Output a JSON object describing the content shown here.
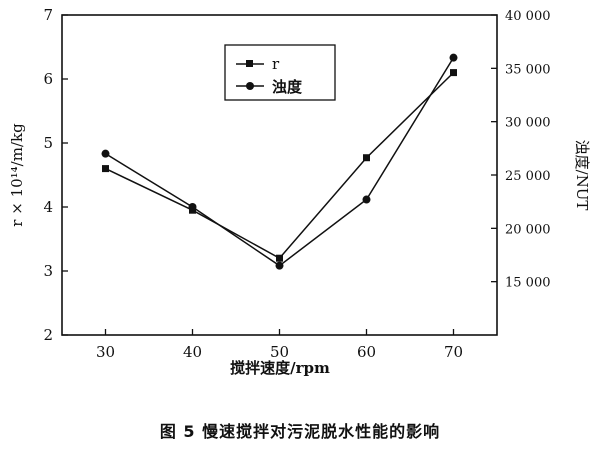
{
  "chart_data": {
    "type": "line",
    "title": "",
    "xlabel": "搅拌速度/rpm",
    "ylabel_left": "r × 10¹⁴/m/kg",
    "ylabel_right": "浊度/NUT",
    "x": [
      30,
      40,
      50,
      60,
      70
    ],
    "xlim": [
      25,
      75
    ],
    "ylim_left": [
      2,
      7
    ],
    "ylim_right": [
      10000,
      40000
    ],
    "x_ticks": [
      "30",
      "40",
      "50",
      "60",
      "70"
    ],
    "y_ticks_left": [
      "2",
      "3",
      "4",
      "5",
      "6",
      "7"
    ],
    "y_ticks_right": [
      "15 000",
      "20 000",
      "25 000",
      "30 000",
      "35 000",
      "40 000"
    ],
    "grid": false,
    "legend_position": "upper-middle",
    "series": [
      {
        "name": "r",
        "axis": "left",
        "marker": "square",
        "values": [
          4.6,
          3.95,
          3.2,
          4.77,
          6.1
        ]
      },
      {
        "name": "浊度",
        "axis": "right",
        "marker": "circle",
        "values": [
          27000,
          22000,
          16500,
          22700,
          36000
        ]
      }
    ]
  },
  "caption": "图 5   慢速搅拌对污泥脱水性能的影响",
  "colors": {
    "line": "#111111",
    "background": "#ffffff"
  }
}
